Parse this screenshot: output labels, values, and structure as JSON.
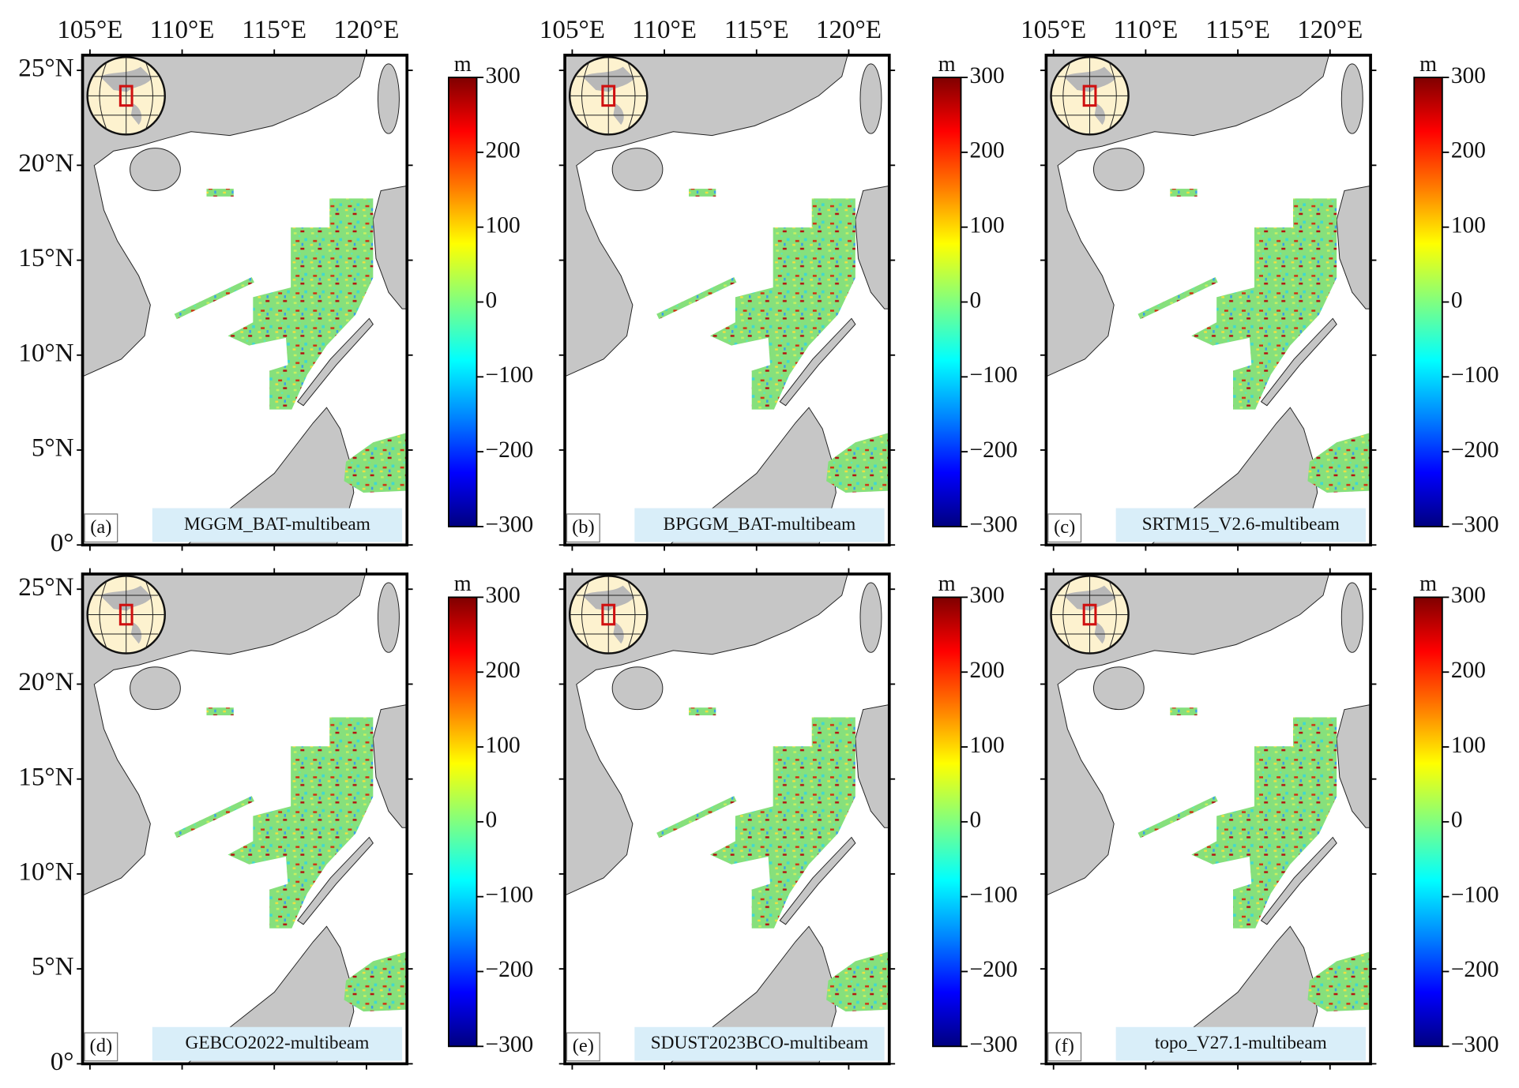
{
  "map": {
    "xlim": [
      104.6,
      122.2
    ],
    "ylim": [
      0,
      25.8
    ],
    "xticks": [
      {
        "value": 105,
        "label": "105°E"
      },
      {
        "value": 110,
        "label": "110°E"
      },
      {
        "value": 115,
        "label": "115°E"
      },
      {
        "value": 120,
        "label": "120°E"
      }
    ],
    "yticks": [
      {
        "value": 0,
        "label": "0°"
      },
      {
        "value": 5,
        "label": "5°N"
      },
      {
        "value": 10,
        "label": "10°N"
      },
      {
        "value": 15,
        "label": "15°N"
      },
      {
        "value": 20,
        "label": "20°N"
      },
      {
        "value": 25,
        "label": "25°N"
      }
    ]
  },
  "colorbar": {
    "unit": "m",
    "lim": [
      -300,
      300
    ],
    "ticks": [
      300,
      200,
      100,
      0,
      {
        "value": -100,
        "label": "−100"
      },
      {
        "value": -200,
        "label": "−200"
      },
      {
        "value": -300,
        "label": "−300"
      }
    ]
  },
  "panels": [
    {
      "label": "(a)",
      "title": "MGGM_BAT-multibeam"
    },
    {
      "label": "(b)",
      "title": "BPGGM_BAT-multibeam"
    },
    {
      "label": "(c)",
      "title": "SRTM15_V2.6-multibeam"
    },
    {
      "label": "(d)",
      "title": "GEBCO2022-multibeam"
    },
    {
      "label": "(e)",
      "title": "SDUST2023BCO-multibeam"
    },
    {
      "label": "(f)",
      "title": "topo_V27.1-multibeam"
    }
  ]
}
